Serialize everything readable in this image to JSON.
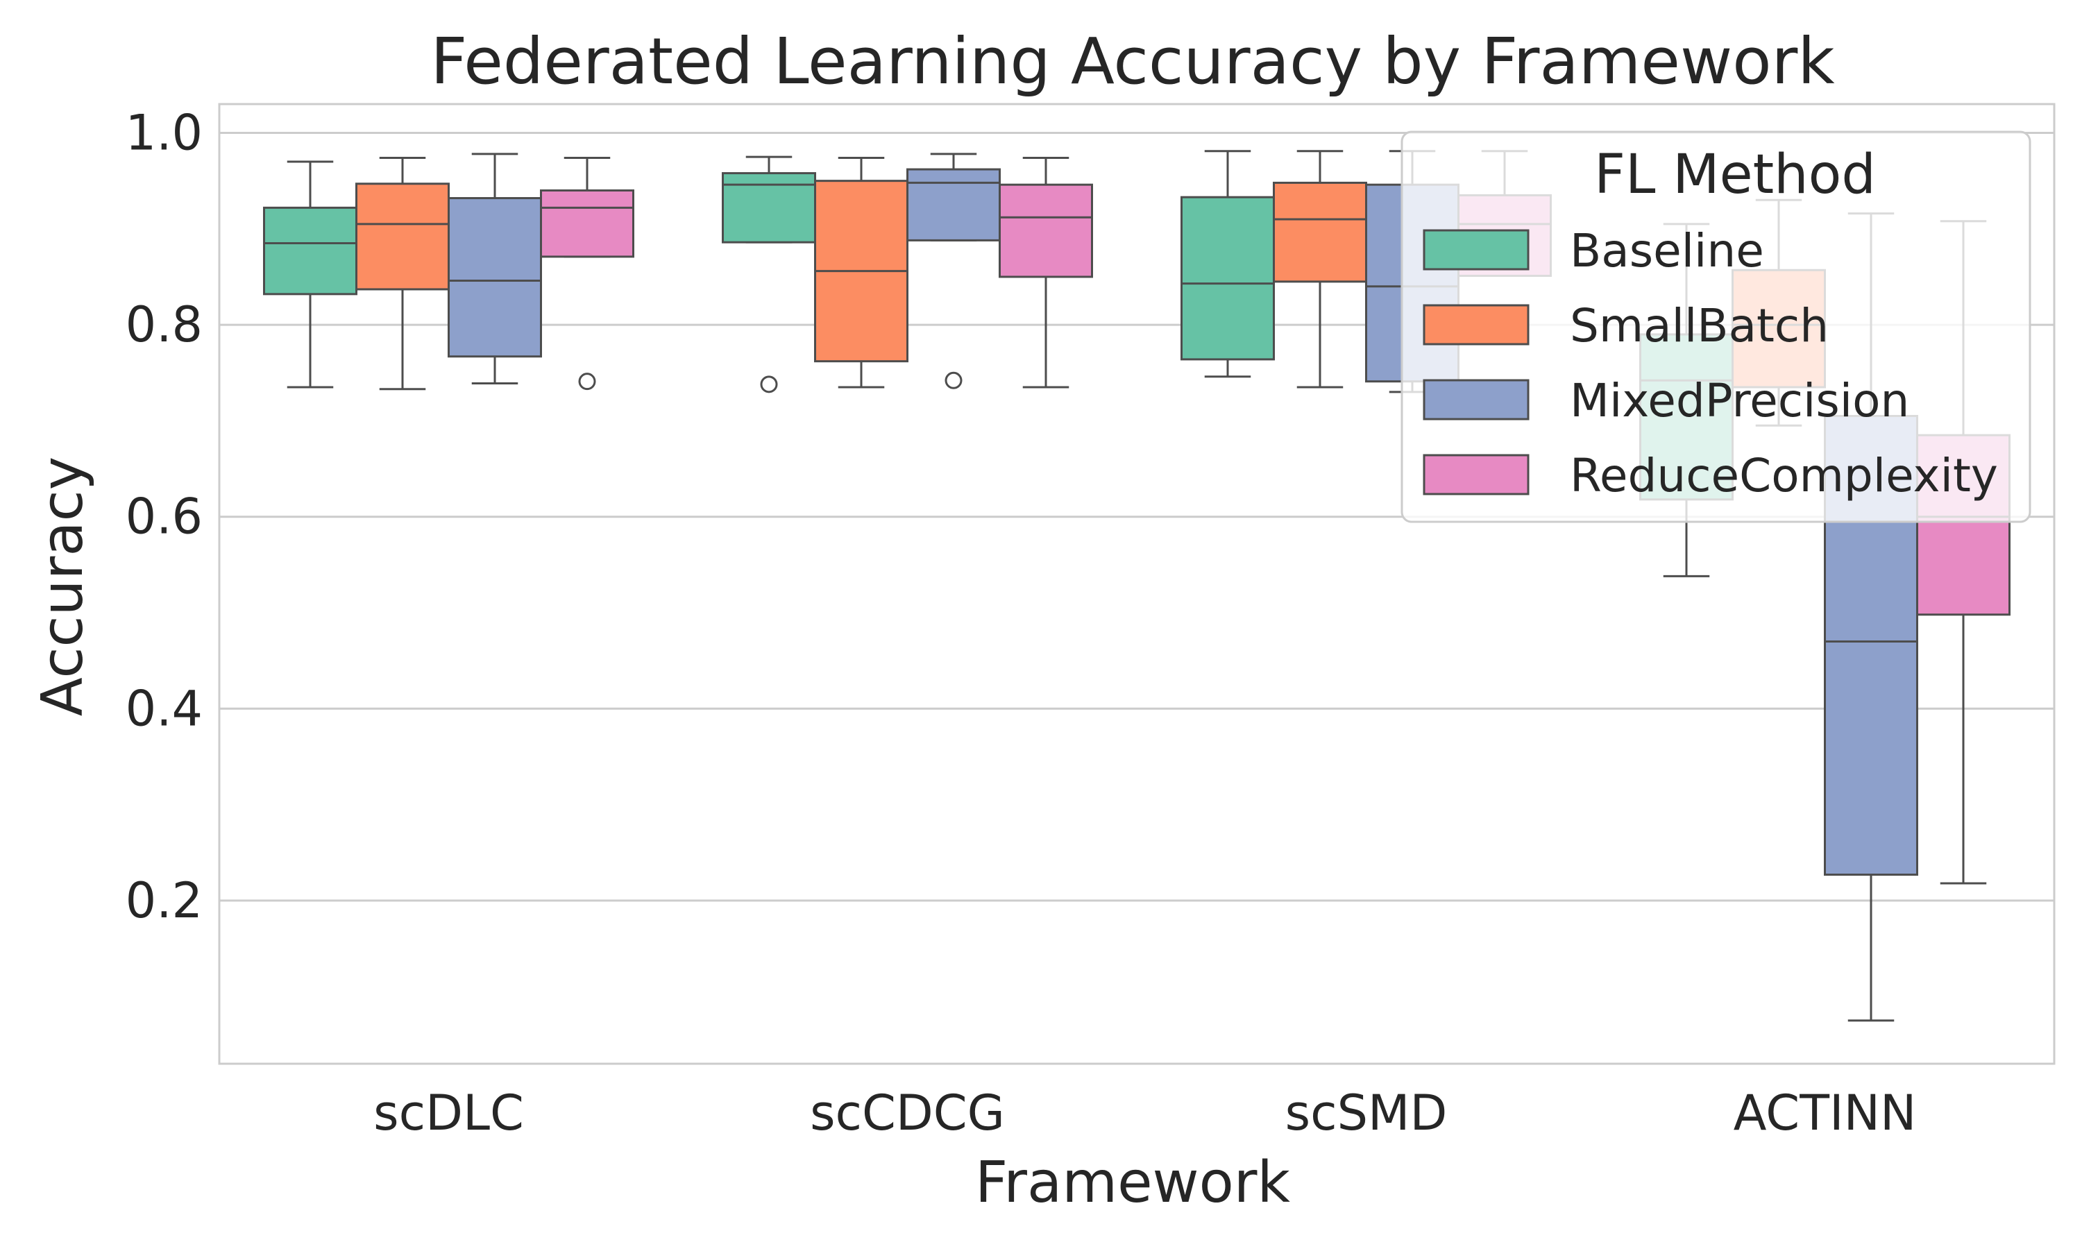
{
  "chart_data": {
    "type": "box",
    "title": "Federated Learning Accuracy by Framework",
    "xlabel": "Framework",
    "ylabel": "Accuracy",
    "categories": [
      "scDLC",
      "scCDCG",
      "scSMD",
      "ACTINN"
    ],
    "ylim": [
      0.03,
      1.03
    ],
    "yticks": [
      0.2,
      0.4,
      0.6,
      0.8,
      1.0
    ],
    "grid": true,
    "legend": {
      "title": "FL Method",
      "placement": "top-right"
    },
    "series": [
      {
        "name": "Baseline",
        "color": "#66c2a5",
        "boxes": [
          {
            "whisker_low": 0.735,
            "q1": 0.832,
            "median": 0.885,
            "q3": 0.922,
            "whisker_high": 0.97,
            "outliers": []
          },
          {
            "whisker_low": 0.886,
            "q1": 0.886,
            "median": 0.946,
            "q3": 0.958,
            "whisker_high": 0.975,
            "outliers": [
              0.738
            ]
          },
          {
            "whisker_low": 0.746,
            "q1": 0.764,
            "median": 0.843,
            "q3": 0.933,
            "whisker_high": 0.981,
            "outliers": []
          },
          {
            "whisker_low": 0.538,
            "q1": 0.618,
            "median": 0.742,
            "q3": 0.79,
            "whisker_high": 0.905,
            "outliers": []
          }
        ]
      },
      {
        "name": "SmallBatch",
        "color": "#fc8d62",
        "boxes": [
          {
            "whisker_low": 0.733,
            "q1": 0.837,
            "median": 0.905,
            "q3": 0.947,
            "whisker_high": 0.974,
            "outliers": []
          },
          {
            "whisker_low": 0.735,
            "q1": 0.762,
            "median": 0.856,
            "q3": 0.95,
            "whisker_high": 0.974,
            "outliers": []
          },
          {
            "whisker_low": 0.735,
            "q1": 0.845,
            "median": 0.91,
            "q3": 0.948,
            "whisker_high": 0.981,
            "outliers": []
          },
          {
            "whisker_low": 0.695,
            "q1": 0.735,
            "median": 0.8,
            "q3": 0.857,
            "whisker_high": 0.93,
            "outliers": []
          }
        ]
      },
      {
        "name": "MixedPrecision",
        "color": "#8da0cb",
        "boxes": [
          {
            "whisker_low": 0.739,
            "q1": 0.767,
            "median": 0.846,
            "q3": 0.932,
            "whisker_high": 0.978,
            "outliers": []
          },
          {
            "whisker_low": 0.888,
            "q1": 0.888,
            "median": 0.948,
            "q3": 0.962,
            "whisker_high": 0.978,
            "outliers": [
              0.742
            ]
          },
          {
            "whisker_low": 0.73,
            "q1": 0.741,
            "median": 0.84,
            "q3": 0.946,
            "whisker_high": 0.981,
            "outliers": []
          },
          {
            "whisker_low": 0.075,
            "q1": 0.227,
            "median": 0.47,
            "q3": 0.705,
            "whisker_high": 0.916,
            "outliers": []
          }
        ]
      },
      {
        "name": "ReduceComplexity",
        "color": "#e78ac3",
        "boxes": [
          {
            "whisker_low": 0.871,
            "q1": 0.871,
            "median": 0.922,
            "q3": 0.94,
            "whisker_high": 0.974,
            "outliers": [
              0.741
            ]
          },
          {
            "whisker_low": 0.735,
            "q1": 0.85,
            "median": 0.912,
            "q3": 0.946,
            "whisker_high": 0.974,
            "outliers": []
          },
          {
            "whisker_low": 0.851,
            "q1": 0.851,
            "median": 0.905,
            "q3": 0.935,
            "whisker_high": 0.981,
            "outliers": []
          },
          {
            "whisker_low": 0.218,
            "q1": 0.498,
            "median": 0.6,
            "q3": 0.685,
            "whisker_high": 0.908,
            "outliers": []
          }
        ]
      }
    ]
  }
}
